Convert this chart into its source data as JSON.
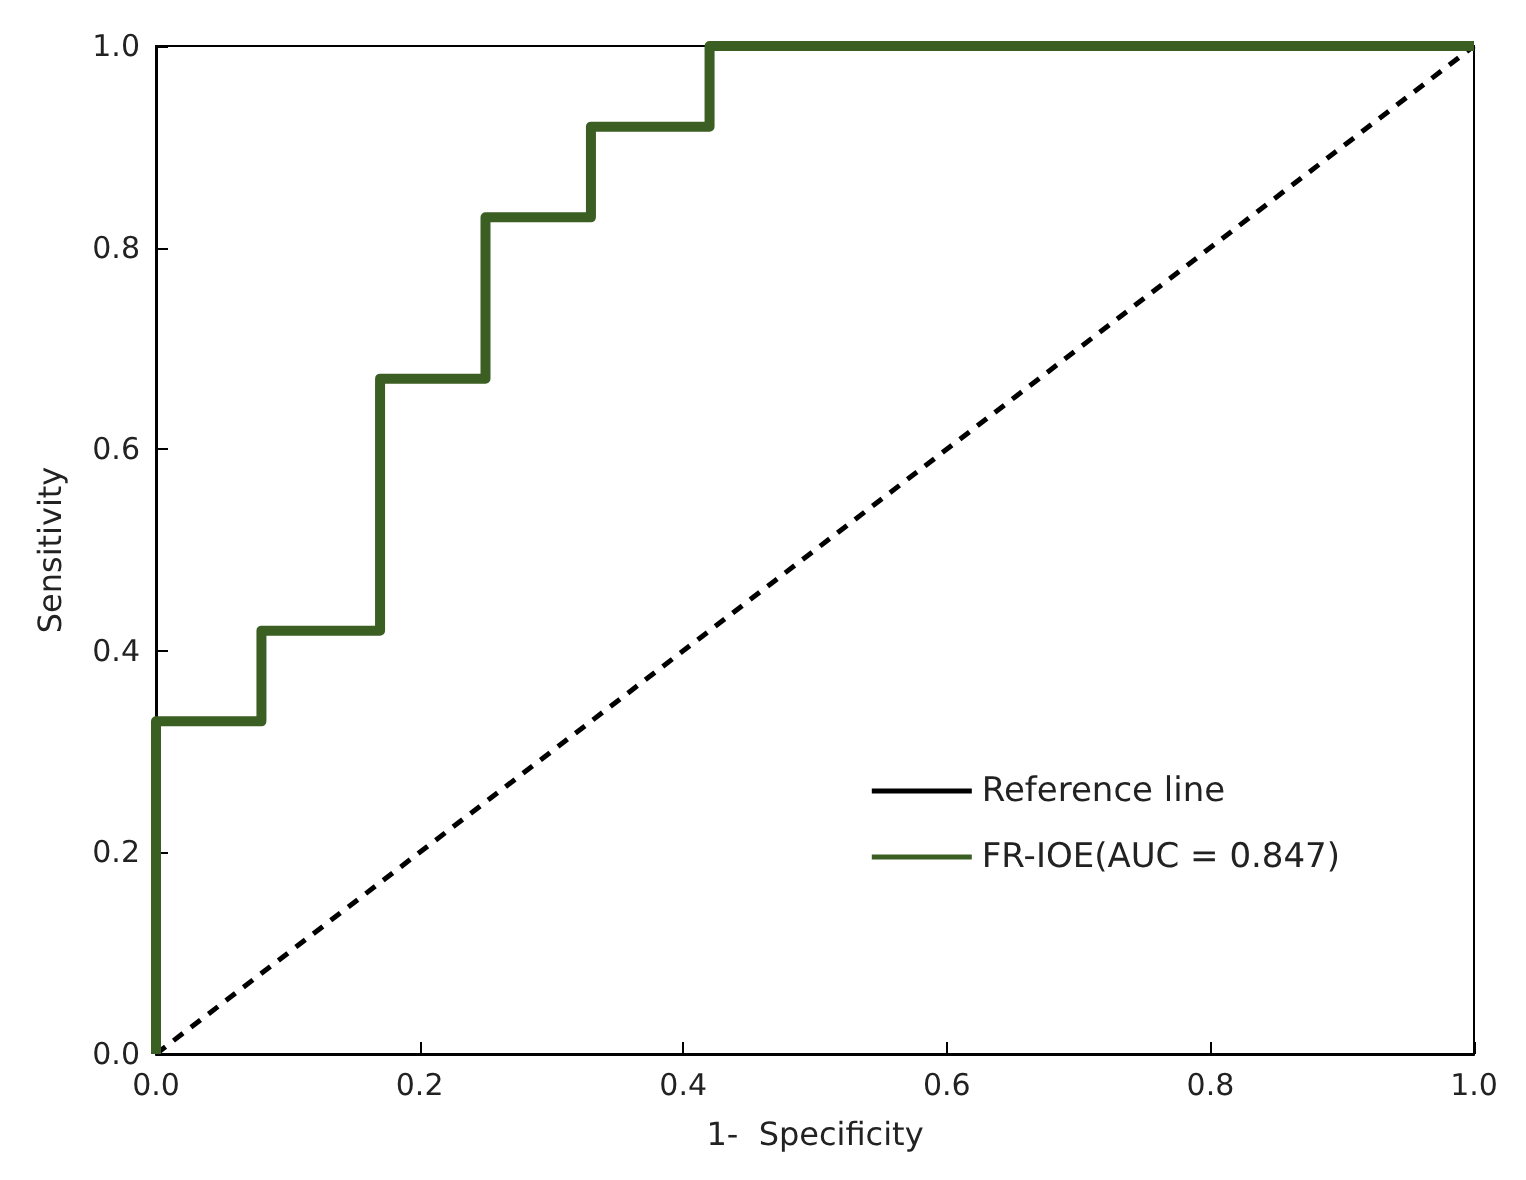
{
  "chart_data": {
    "type": "line",
    "xlabel": "1-  Specificity",
    "ylabel": "Sensitivity",
    "xlim": [
      0,
      1
    ],
    "ylim": [
      0,
      1
    ],
    "xticks": [
      {
        "value": 0,
        "label": "0.0"
      },
      0.2,
      0.4,
      0.6,
      0.8,
      {
        "value": 1,
        "label": "1.0"
      }
    ],
    "yticks": [
      {
        "value": 0,
        "label": "0.0"
      },
      0.2,
      0.4,
      0.6,
      0.8,
      {
        "value": 1,
        "label": "1.0"
      }
    ],
    "grid": false,
    "legend": "bottom right",
    "marker": "none",
    "series": [
      {
        "name": "Reference line",
        "color": "#000000",
        "line_style": "dashed",
        "x": [
          0,
          1
        ],
        "values": [
          0,
          1
        ]
      },
      {
        "name": "FR-IOE(AUC = 0.847)",
        "color": "#3b5e22",
        "line_style": "solid",
        "x": [
          0,
          0,
          0.08,
          0.08,
          0.17,
          0.17,
          0.25,
          0.25,
          0.33,
          0.33,
          0.42,
          0.42,
          1
        ],
        "values": [
          0,
          0.33,
          0.33,
          0.42,
          0.42,
          0.67,
          0.67,
          0.83,
          0.83,
          0.92,
          0.92,
          1,
          1
        ]
      }
    ]
  }
}
